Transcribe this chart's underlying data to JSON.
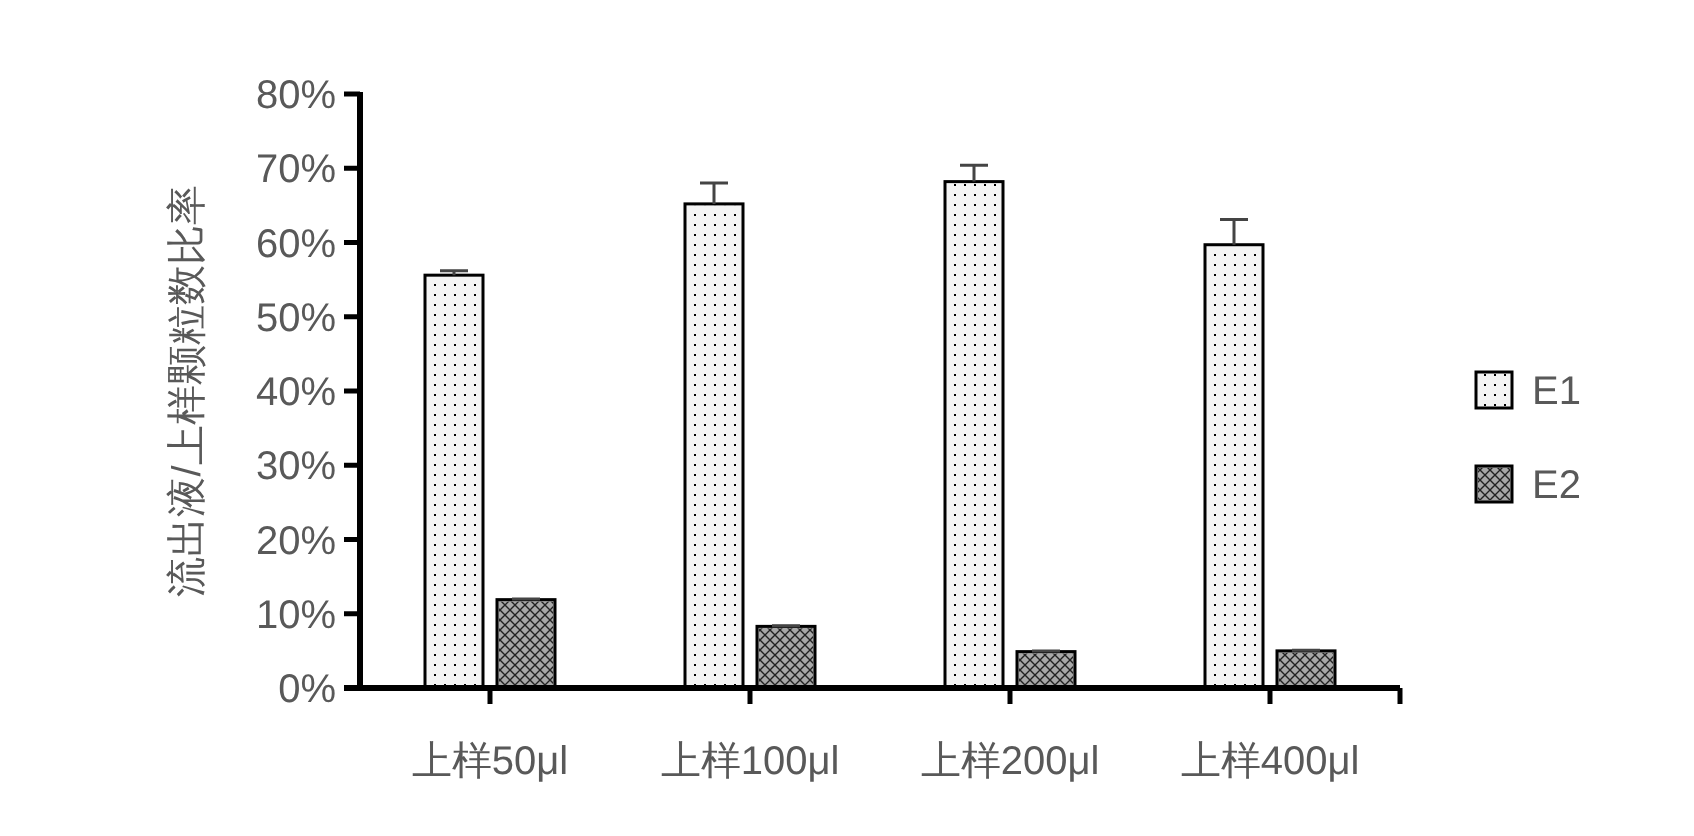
{
  "chart_data": {
    "type": "bar",
    "ylabel": "流出液/上样颗粒数比率",
    "categories": [
      "上样50μl",
      "上样100μl",
      "上样200μl",
      "上样400μl"
    ],
    "series": [
      {
        "name": "E1",
        "color": "#f4f4f4",
        "values": [
          55.6,
          65.2,
          68.2,
          59.7
        ],
        "errors": [
          0.6,
          2.8,
          2.2,
          3.4
        ]
      },
      {
        "name": "E2",
        "color": "#a8a8a8",
        "values": [
          11.9,
          8.3,
          4.9,
          5.0
        ],
        "errors": [
          0.1,
          0.1,
          0.1,
          0.1
        ]
      }
    ],
    "ylim": [
      0,
      80
    ],
    "yticks": [
      {
        "value": 0,
        "label": "0%"
      },
      {
        "value": 10,
        "label": "10%"
      },
      {
        "value": 20,
        "label": "20%"
      },
      {
        "value": 30,
        "label": "30%"
      },
      {
        "value": 40,
        "label": "40%"
      },
      {
        "value": 50,
        "label": "50%"
      },
      {
        "value": 60,
        "label": "60%"
      },
      {
        "value": 70,
        "label": "70%"
      },
      {
        "value": 80,
        "label": "80%"
      }
    ],
    "grid": false,
    "legend": "right"
  }
}
